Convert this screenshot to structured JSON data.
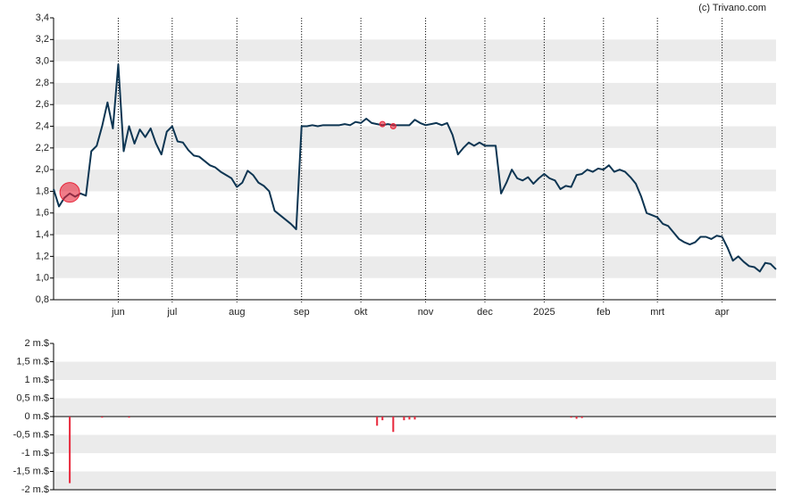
{
  "source": "(c) Trivano.com",
  "chart_data": [
    {
      "type": "line",
      "color": "#0d3552",
      "xlim": [
        0,
        134
      ],
      "xticks": [
        {
          "value": 12,
          "label": "jun"
        },
        {
          "value": 22,
          "label": "jul"
        },
        {
          "value": 34,
          "label": "aug"
        },
        {
          "value": 46,
          "label": "sep"
        },
        {
          "value": 57,
          "label": "okt"
        },
        {
          "value": 69,
          "label": "nov"
        },
        {
          "value": 80,
          "label": "dec"
        },
        {
          "value": 91,
          "label": "2025"
        },
        {
          "value": 102,
          "label": "feb"
        },
        {
          "value": 112,
          "label": "mrt"
        },
        {
          "value": 124,
          "label": "apr"
        }
      ],
      "ylim": [
        0.8,
        3.4
      ],
      "yticks": [
        {
          "value": 0.8,
          "label": "0,8"
        },
        {
          "value": 1.0,
          "label": "1,0"
        },
        {
          "value": 1.2,
          "label": "1,2"
        },
        {
          "value": 1.4,
          "label": "1,4"
        },
        {
          "value": 1.6,
          "label": "1,6"
        },
        {
          "value": 1.8,
          "label": "1,8"
        },
        {
          "value": 2.0,
          "label": "2,0"
        },
        {
          "value": 2.2,
          "label": "2,2"
        },
        {
          "value": 2.4,
          "label": "2,4"
        },
        {
          "value": 2.6,
          "label": "2,6"
        },
        {
          "value": 2.8,
          "label": "2,8"
        },
        {
          "value": 3.0,
          "label": "3,0"
        },
        {
          "value": 3.2,
          "label": "3,2"
        },
        {
          "value": 3.4,
          "label": "3,4"
        }
      ],
      "values": [
        1.82,
        1.66,
        1.74,
        1.78,
        1.75,
        1.78,
        1.76,
        2.17,
        2.22,
        2.4,
        2.62,
        2.38,
        2.97,
        2.17,
        2.4,
        2.24,
        2.37,
        2.3,
        2.38,
        2.24,
        2.14,
        2.35,
        2.4,
        2.26,
        2.25,
        2.18,
        2.13,
        2.12,
        2.08,
        2.04,
        2.02,
        1.98,
        1.95,
        1.92,
        1.84,
        1.88,
        1.99,
        1.95,
        1.88,
        1.85,
        1.8,
        1.62,
        1.58,
        1.54,
        1.5,
        1.45,
        2.4,
        2.4,
        2.41,
        2.4,
        2.41,
        2.41,
        2.41,
        2.41,
        2.42,
        2.41,
        2.44,
        2.43,
        2.47,
        2.43,
        2.42,
        2.41,
        2.42,
        2.41,
        2.41,
        2.41,
        2.41,
        2.46,
        2.43,
        2.41,
        2.42,
        2.43,
        2.41,
        2.43,
        2.32,
        2.14,
        2.2,
        2.25,
        2.22,
        2.25,
        2.22,
        2.22,
        2.22,
        1.78,
        1.88,
        2.0,
        1.92,
        1.9,
        1.93,
        1.87,
        1.92,
        1.96,
        1.92,
        1.9,
        1.82,
        1.85,
        1.84,
        1.95,
        1.96,
        2.0,
        1.98,
        2.01,
        2.0,
        2.04,
        1.98,
        2.0,
        1.98,
        1.93,
        1.87,
        1.75,
        1.6,
        1.58,
        1.56,
        1.5,
        1.48,
        1.42,
        1.36,
        1.33,
        1.31,
        1.33,
        1.38,
        1.38,
        1.36,
        1.39,
        1.38,
        1.28,
        1.16,
        1.2,
        1.15,
        1.11,
        1.1,
        1.06,
        1.14,
        1.13,
        1.08
      ],
      "highlights": {
        "x": [
          3,
          61,
          63
        ],
        "values": [
          1.79,
          2.42,
          2.4
        ],
        "color": "#e8263a"
      },
      "grid": true
    },
    {
      "type": "bar",
      "color": "#e8263a",
      "xlim": [
        0,
        134
      ],
      "ylim": [
        -2,
        2
      ],
      "yticks": [
        {
          "value": -2,
          "label": "-2 m.$"
        },
        {
          "value": -1.5,
          "label": "-1,5 m.$"
        },
        {
          "value": -1,
          "label": "-1 m.$"
        },
        {
          "value": -0.5,
          "label": "-0,5 m.$"
        },
        {
          "value": 0,
          "label": "0 m.$"
        },
        {
          "value": 0.5,
          "label": "0,5 m.$"
        },
        {
          "value": 1,
          "label": "1 m.$"
        },
        {
          "value": 1.5,
          "label": "1,5 m.$"
        },
        {
          "value": 2,
          "label": "2 m.$"
        }
      ],
      "x": [
        3,
        9,
        14,
        60,
        61,
        63,
        65,
        66,
        67,
        96,
        97,
        98
      ],
      "values": [
        -1.82,
        -0.03,
        -0.03,
        -0.25,
        -0.1,
        -0.42,
        -0.1,
        -0.08,
        -0.08,
        -0.03,
        -0.06,
        -0.04
      ],
      "grid": true
    }
  ]
}
